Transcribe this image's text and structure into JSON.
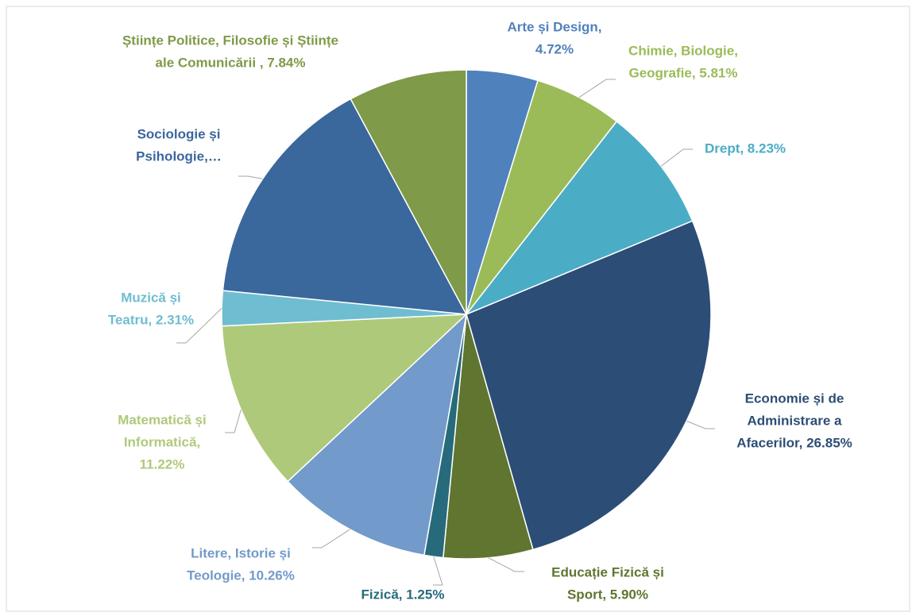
{
  "chart_data": {
    "type": "pie",
    "labels": [
      [
        "Arte și Design,",
        "4.72%"
      ],
      [
        "Chimie, Biologie,",
        "Geografie, 5.81%"
      ],
      [
        "Drept, 8.23%"
      ],
      [
        "Economie și de",
        "Administrare a",
        "Afacerilor, 26.85%"
      ],
      [
        "Educație Fizică și",
        "Sport, 5.90%"
      ],
      [
        "Fizică, 1.25%"
      ],
      [
        "Litere, Istorie și",
        "Teologie, 10.26%"
      ],
      [
        "Matematică și",
        "Informatică,",
        "11.22%"
      ],
      [
        "Muzică și",
        "Teatru, 2.31%"
      ],
      [
        "Sociologie și",
        "Psihologie,…"
      ],
      [
        "Științe Politice, Filosofie și Științe",
        "ale Comunicării , 7.84%"
      ]
    ],
    "values": [
      4.72,
      5.81,
      8.23,
      26.85,
      5.9,
      1.25,
      10.26,
      11.22,
      2.31,
      15.61,
      7.84
    ],
    "colors": [
      "#4f81bd",
      "#9bbb59",
      "#4bacc6",
      "#2c4d75",
      "#5f7530",
      "#276a7c",
      "#729aca",
      "#afc97a",
      "#6fbdd1",
      "#3a679c",
      "#7f9a48"
    ]
  }
}
